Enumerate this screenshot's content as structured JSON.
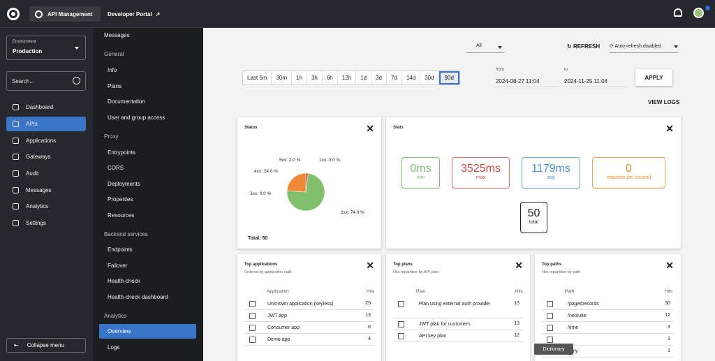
{
  "topbar": {
    "app": "API Management",
    "portal": "Developer Portal"
  },
  "env": {
    "label": "Environment",
    "value": "Production"
  },
  "search": {
    "placeholder": "Search..."
  },
  "nav": [
    "Dashboard",
    "APIs",
    "Applications",
    "Gateways",
    "Audit",
    "Messages",
    "Analytics",
    "Settings"
  ],
  "collapse": "Collapse menu",
  "sub": {
    "messages": "Messages",
    "general": "General",
    "general_items": [
      "Info",
      "Plans",
      "Documentation",
      "User and group access"
    ],
    "proxy": "Proxy",
    "proxy_items": [
      "Entrypoints",
      "CORS",
      "Deployments",
      "Properties",
      "Resources"
    ],
    "backend": "Backend services",
    "backend_items": [
      "Endpoints",
      "Failover",
      "Health-check",
      "Health-check dashboard"
    ],
    "analytics": "Analytics",
    "analytics_items": [
      "Overview",
      "Logs"
    ]
  },
  "toolbar": {
    "filter": "All",
    "refresh": "REFRESH",
    "auto": "Auto-refresh disabled",
    "ranges": [
      "Last 5m",
      "30m",
      "1h",
      "3h",
      "6h",
      "12h",
      "1d",
      "3d",
      "7d",
      "14d",
      "30d",
      "90d"
    ],
    "from_label": "from",
    "from": "2024-08-27 11:04",
    "to_label": "to",
    "to": "2024-11-25 11:04",
    "apply": "APPLY",
    "view_logs": "VIEW LOGS"
  },
  "status": {
    "title": "Status",
    "total": "Total: 50",
    "labels": {
      "s5xx": "5xx: 2.0 %",
      "s1xx": "1xx: 0.0 %",
      "s4xx": "4xx: 24.0 %",
      "s3xx": "3xx: 0.0 %",
      "s2xx": "2xx: 74.0 %"
    }
  },
  "chart_data": {
    "type": "pie",
    "categories": [
      "1xx",
      "2xx",
      "3xx",
      "4xx",
      "5xx"
    ],
    "values": [
      0,
      74,
      0,
      24,
      2
    ]
  },
  "stats": {
    "title": "Stats",
    "min": "0ms",
    "min_l": "min",
    "max": "3525ms",
    "max_l": "max",
    "avg": "1179ms",
    "avg_l": "avg",
    "rps": "0",
    "rps_l": "requests per second",
    "total": "50",
    "total_l": "total"
  },
  "apps": {
    "title": "Top applications",
    "sub": "Ordered by application calls",
    "col": "Application",
    "hits": "Hits",
    "rows": [
      [
        "Unknown application (keyless)",
        "25"
      ],
      [
        "JWT app",
        "13"
      ],
      [
        "Consumer app",
        "8"
      ],
      [
        "Demo app",
        "4"
      ]
    ]
  },
  "plans": {
    "title": "Top plans",
    "sub": "Hits repartition by API plan",
    "col": "Plan",
    "hits": "Hits",
    "rows": [
      [
        "Plan using external auth provider",
        "15"
      ],
      [
        "JWT plan for customers",
        "13"
      ],
      [
        "API key plan",
        "12"
      ]
    ]
  },
  "paths": {
    "title": "Top paths",
    "sub": "Hits repartition by path",
    "col": "Path",
    "hits": "Hits",
    "rows": [
      [
        "/pagedrecords",
        "30"
      ],
      [
        "/netsuite",
        "12"
      ],
      [
        "/time",
        "4"
      ],
      [
        "",
        "3"
      ],
      [
        "opify",
        "1"
      ]
    ]
  },
  "tooltip": "Dictionary"
}
